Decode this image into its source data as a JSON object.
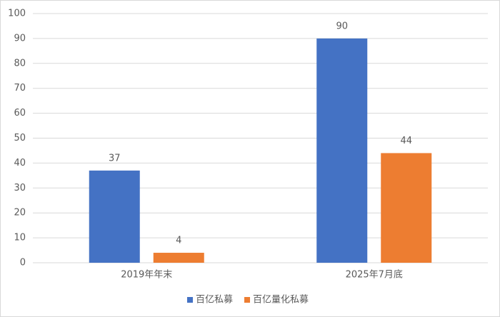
{
  "chart_data": {
    "type": "bar",
    "categories": [
      "2019年年末",
      "2025年7月底"
    ],
    "series": [
      {
        "name": "百亿私募",
        "color": "#4472c4",
        "values": [
          37,
          90
        ]
      },
      {
        "name": "百亿量化私募",
        "color": "#ed7d31",
        "values": [
          4,
          44
        ]
      }
    ],
    "ylim": [
      0,
      100
    ],
    "yticks": [
      0,
      10,
      20,
      30,
      40,
      50,
      60,
      70,
      80,
      90,
      100
    ],
    "grid": true,
    "legend": "bottom"
  }
}
